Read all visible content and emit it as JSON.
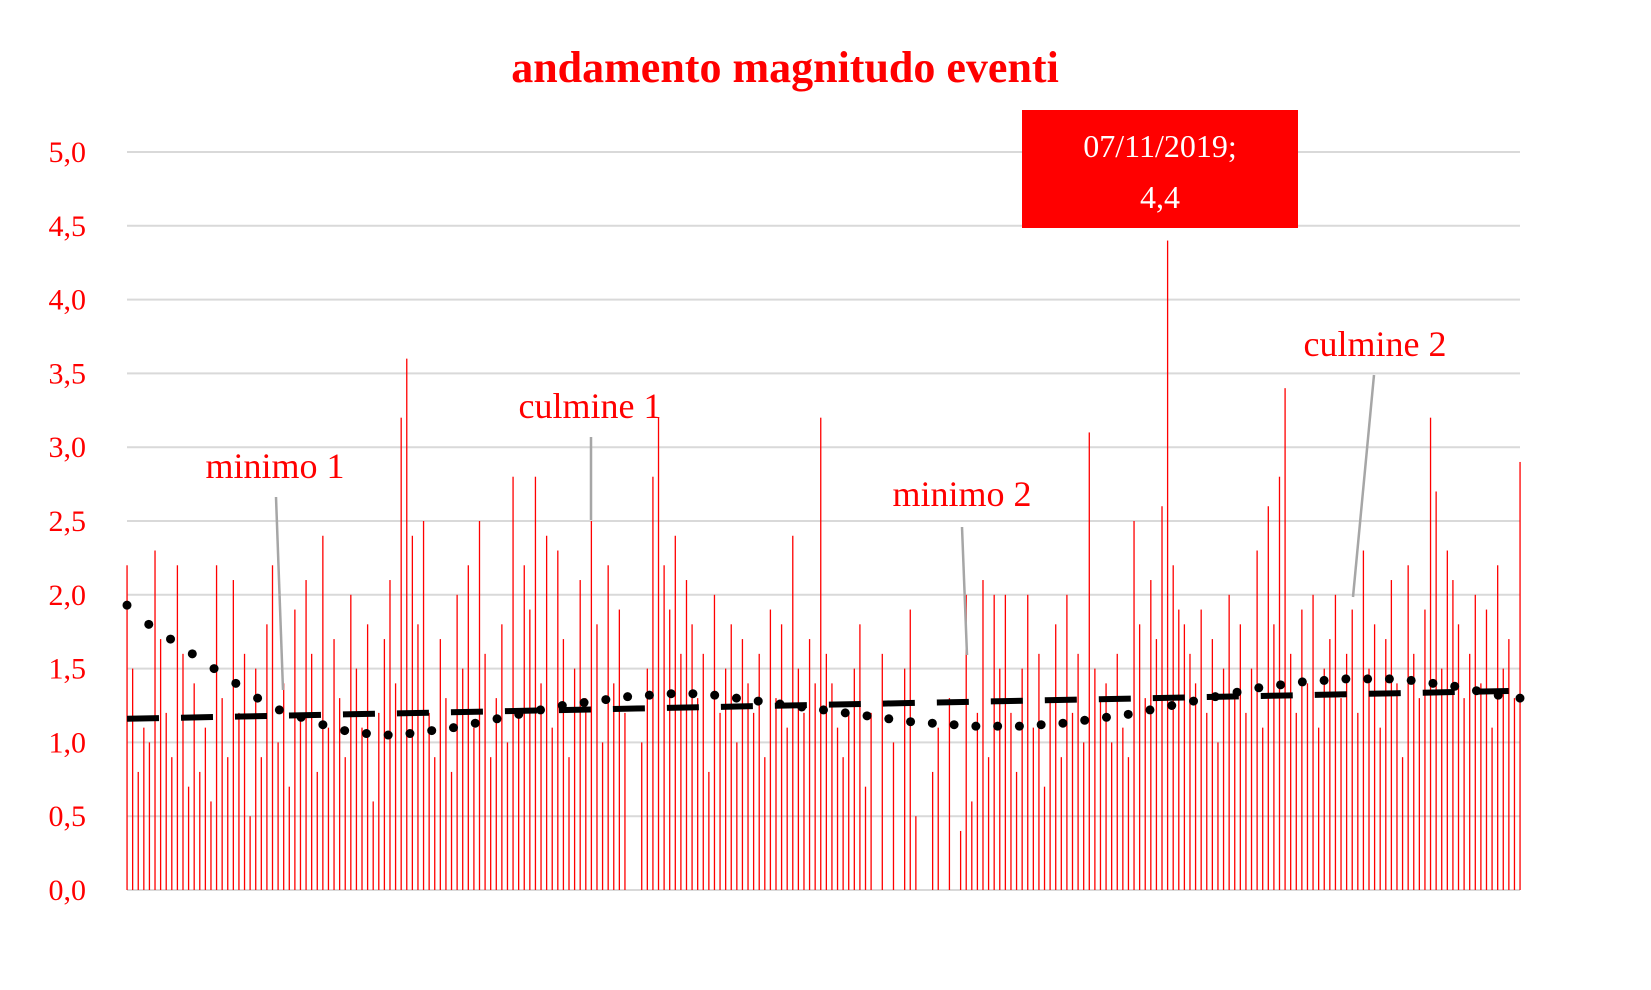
{
  "chart_data": {
    "type": "bar",
    "title": "andamento magnitudo eventi",
    "xlabel": "",
    "ylabel": "",
    "ylim": [
      0,
      5
    ],
    "y_ticks": [
      "0,0",
      "0,5",
      "1,0",
      "1,5",
      "2,0",
      "2,5",
      "3,0",
      "3,5",
      "4,0",
      "4,5",
      "5,0"
    ],
    "grid": true,
    "bar_color": "#ff0000",
    "gridline_color": "#d9d9d9",
    "leader_line_color": "#a6a6a6",
    "values": [
      2.2,
      1.5,
      0.8,
      1.1,
      1.0,
      2.3,
      1.7,
      1.2,
      0.9,
      2.2,
      1.6,
      0.7,
      1.4,
      0.8,
      1.1,
      0.6,
      2.2,
      1.3,
      0.9,
      2.1,
      1.2,
      1.6,
      0.5,
      1.5,
      0.9,
      1.8,
      2.2,
      1.0,
      1.4,
      0.7,
      1.9,
      1.2,
      2.1,
      1.6,
      0.8,
      2.4,
      1.1,
      1.7,
      1.3,
      0.9,
      2.0,
      1.5,
      1.1,
      1.8,
      0.6,
      1.2,
      1.7,
      2.1,
      1.4,
      3.2,
      3.6,
      2.4,
      1.8,
      2.5,
      1.2,
      0.9,
      1.7,
      1.3,
      0.8,
      2.0,
      1.5,
      2.2,
      1.1,
      2.5,
      1.6,
      0.9,
      1.3,
      1.8,
      1.0,
      2.8,
      1.2,
      2.2,
      1.9,
      2.8,
      1.4,
      2.4,
      1.1,
      2.3,
      1.7,
      0.9,
      1.5,
      2.1,
      1.3,
      2.5,
      1.8,
      1.0,
      2.2,
      1.4,
      1.9,
      1.2,
      0,
      0,
      1.0,
      1.5,
      2.8,
      3.2,
      2.2,
      1.9,
      2.4,
      1.6,
      2.1,
      1.8,
      1.3,
      1.6,
      0.8,
      2.0,
      1.2,
      1.5,
      1.8,
      1.0,
      1.7,
      1.4,
      1.2,
      1.6,
      0.9,
      1.9,
      1.3,
      1.8,
      1.1,
      2.4,
      1.5,
      1.2,
      1.7,
      1.4,
      3.2,
      1.6,
      1.4,
      1.1,
      0.9,
      1.2,
      1.5,
      1.8,
      0.7,
      1.2,
      0,
      1.6,
      0,
      1.0,
      0,
      1.5,
      1.9,
      0.5,
      0,
      0,
      0.8,
      1.1,
      0,
      1.3,
      0,
      0.4,
      2.0,
      0.6,
      1.2,
      2.1,
      0.9,
      2.0,
      1.5,
      2.0,
      1.2,
      0.8,
      1.5,
      2.0,
      1.1,
      1.6,
      0.7,
      1.3,
      1.8,
      0.9,
      2.0,
      1.2,
      1.6,
      1.0,
      3.1,
      1.5,
      1.3,
      1.4,
      1.0,
      1.6,
      1.1,
      0.9,
      2.5,
      1.8,
      1.3,
      2.1,
      1.7,
      2.6,
      4.4,
      2.2,
      1.9,
      1.8,
      1.6,
      1.4,
      1.9,
      1.2,
      1.7,
      1.0,
      1.5,
      2.0,
      1.3,
      1.8,
      1.2,
      1.5,
      2.3,
      1.1,
      2.6,
      1.8,
      2.8,
      3.4,
      1.6,
      1.2,
      1.9,
      1.4,
      2.0,
      1.1,
      1.5,
      1.7,
      2.0,
      1.3,
      1.6,
      1.9,
      1.2,
      2.3,
      1.5,
      1.8,
      1.1,
      1.7,
      2.1,
      1.4,
      0.9,
      2.2,
      1.6,
      1.3,
      1.9,
      3.2,
      2.7,
      1.5,
      2.3,
      2.1,
      1.8,
      1.3,
      1.6,
      2.0,
      1.4,
      1.9,
      1.1,
      2.2,
      1.5,
      1.7,
      1.3,
      2.9
    ],
    "linear_trend": {
      "start": 1.16,
      "end": 1.35,
      "style": "dashed",
      "color": "#000000"
    },
    "polynomial_trend": {
      "style": "dotted",
      "color": "#000000",
      "values": [
        1.93,
        1.8,
        1.7,
        1.6,
        1.5,
        1.4,
        1.3,
        1.22,
        1.17,
        1.12,
        1.08,
        1.06,
        1.05,
        1.06,
        1.08,
        1.1,
        1.13,
        1.16,
        1.19,
        1.22,
        1.25,
        1.27,
        1.29,
        1.31,
        1.32,
        1.33,
        1.33,
        1.32,
        1.3,
        1.28,
        1.26,
        1.24,
        1.22,
        1.2,
        1.18,
        1.16,
        1.14,
        1.13,
        1.12,
        1.11,
        1.11,
        1.11,
        1.12,
        1.13,
        1.15,
        1.17,
        1.19,
        1.22,
        1.25,
        1.28,
        1.31,
        1.34,
        1.37,
        1.39,
        1.41,
        1.42,
        1.43,
        1.43,
        1.43,
        1.42,
        1.4,
        1.38,
        1.35,
        1.32,
        1.3
      ]
    },
    "data_label": {
      "line1": "07/11/2019;",
      "line2": "4,4",
      "background": "#ff0000"
    },
    "annotations": [
      "minimo 1",
      "culmine 1",
      "minimo 2",
      "culmine 2"
    ]
  }
}
